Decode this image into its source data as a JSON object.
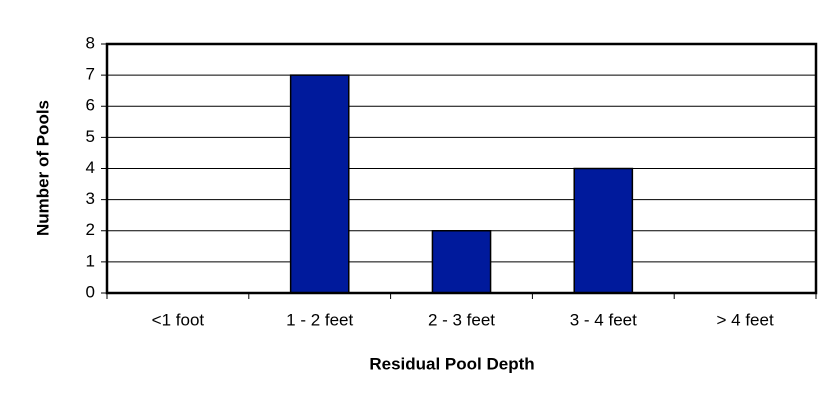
{
  "chart_data": {
    "type": "bar",
    "x_label": "Residual Pool Depth",
    "y_label": "Number of Pools",
    "categories": [
      "<1 foot",
      "1 - 2 feet",
      "2 - 3 feet",
      "3 - 4 feet",
      "> 4 feet"
    ],
    "values": [
      0,
      7,
      2,
      4,
      0
    ],
    "color": "#001a9c",
    "ylim": [
      0,
      8
    ],
    "yticks": [
      0,
      1,
      2,
      3,
      4,
      5,
      6,
      7,
      8
    ],
    "grid": true
  }
}
